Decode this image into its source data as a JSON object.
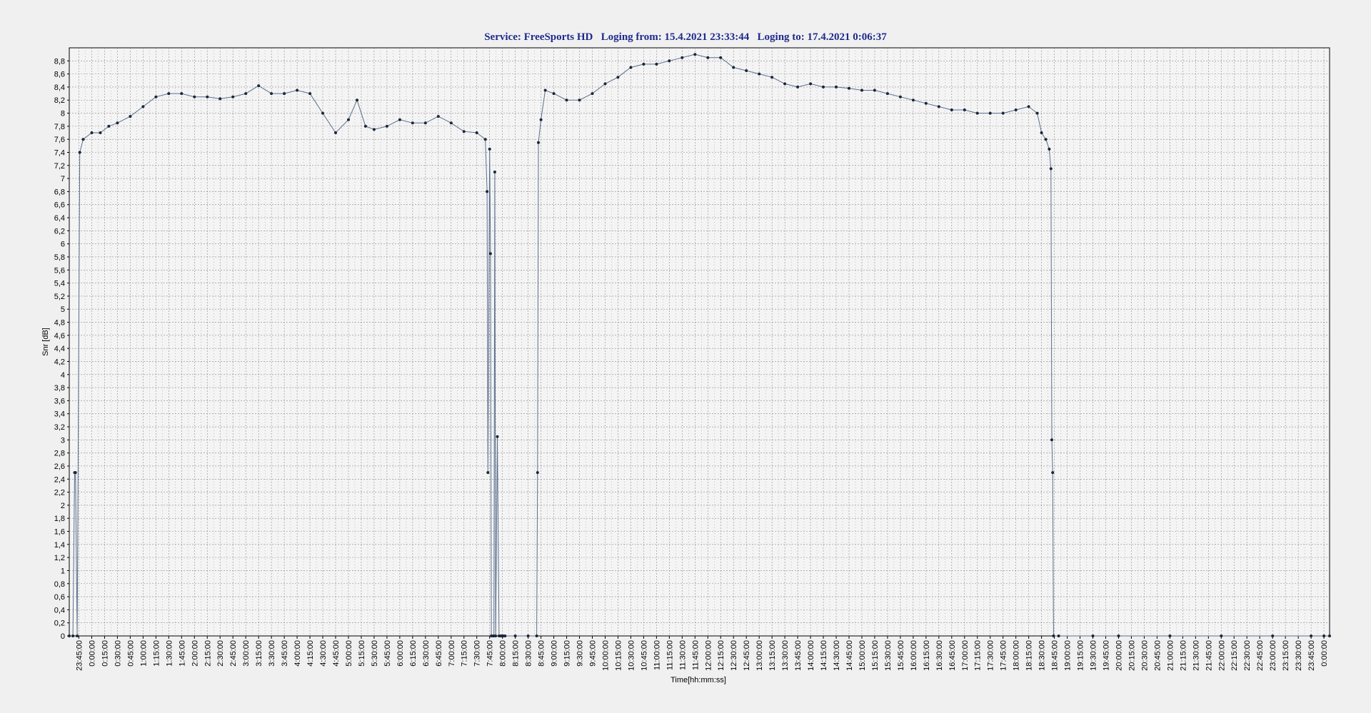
{
  "chart_data": {
    "type": "line",
    "title": "Service: FreeSports HD   Loging from: 15.4.2021 23:33:44   Loging to: 17.4.2021 0:06:37",
    "service": "FreeSports HD",
    "loging_from": "15.4.2021 23:33:44",
    "loging_to": "17.4.2021 0:06:37",
    "xlabel": "Time[hh:mm:ss]",
    "ylabel": "Snr [dB]",
    "ylim": [
      0,
      9.0
    ],
    "yticks": [
      0,
      0.2,
      0.4,
      0.6,
      0.8,
      1,
      1.2,
      1.4,
      1.6,
      1.8,
      2,
      2.2,
      2.4,
      2.6,
      2.8,
      3,
      3.2,
      3.4,
      3.6,
      3.8,
      4,
      4.2,
      4.4,
      4.6,
      4.8,
      5,
      5.2,
      5.4,
      5.6,
      5.8,
      6,
      6.2,
      6.4,
      6.6,
      6.8,
      7,
      7.2,
      7.4,
      7.6,
      7.8,
      8,
      8.2,
      8.4,
      8.6,
      8.8
    ],
    "ytick_labels": [
      "0",
      "0,2",
      "0,4",
      "0,6",
      "0,8",
      "1",
      "1,2",
      "1,4",
      "1,6",
      "1,8",
      "2",
      "2,2",
      "2,4",
      "2,6",
      "2,8",
      "3",
      "3,2",
      "3,4",
      "3,6",
      "3,8",
      "4",
      "4,2",
      "4,4",
      "4,6",
      "4,8",
      "5",
      "5,2",
      "5,4",
      "5,6",
      "5,8",
      "6",
      "6,2",
      "6,4",
      "6,6",
      "6,8",
      "7",
      "7,2",
      "7,4",
      "7,6",
      "7,8",
      "8",
      "8,2",
      "8,4",
      "8,6",
      "8,8"
    ],
    "xrange": [
      "15.4.2021 23:33:44",
      "17.4.2021 0:06:37"
    ],
    "xticks": [
      "23:45:00",
      "0:00:00",
      "0:15:00",
      "0:30:00",
      "0:45:00",
      "1:00:00",
      "1:15:00",
      "1:30:00",
      "1:45:00",
      "2:00:00",
      "2:15:00",
      "2:30:00",
      "2:45:00",
      "3:00:00",
      "3:15:00",
      "3:30:00",
      "3:45:00",
      "4:00:00",
      "4:15:00",
      "4:30:00",
      "4:45:00",
      "5:00:00",
      "5:15:00",
      "5:30:00",
      "5:45:00",
      "6:00:00",
      "6:15:00",
      "6:30:00",
      "6:45:00",
      "7:00:00",
      "7:15:00",
      "7:30:00",
      "7:45:00",
      "8:00:00",
      "8:15:00",
      "8:30:00",
      "8:45:00",
      "9:00:00",
      "9:15:00",
      "9:30:00",
      "9:45:00",
      "10:00:00",
      "10:15:00",
      "10:30:00",
      "10:45:00",
      "11:00:00",
      "11:15:00",
      "11:30:00",
      "11:45:00",
      "12:00:00",
      "12:15:00",
      "12:30:00",
      "12:45:00",
      "13:00:00",
      "13:15:00",
      "13:30:00",
      "13:45:00",
      "14:00:00",
      "14:15:00",
      "14:30:00",
      "14:45:00",
      "15:00:00",
      "15:15:00",
      "15:30:00",
      "15:45:00",
      "16:00:00",
      "16:15:00",
      "16:30:00",
      "16:45:00",
      "17:00:00",
      "17:15:00",
      "17:30:00",
      "17:45:00",
      "18:00:00",
      "18:15:00",
      "18:30:00",
      "18:45:00",
      "19:00:00",
      "19:15:00",
      "19:30:00",
      "19:45:00",
      "20:00:00",
      "20:15:00",
      "20:30:00",
      "20:45:00",
      "21:00:00",
      "21:15:00",
      "21:30:00",
      "21:45:00",
      "22:00:00",
      "22:15:00",
      "22:30:00",
      "22:45:00",
      "23:00:00",
      "23:15:00",
      "23:30:00",
      "23:45:00",
      "0:00:00"
    ],
    "grid": true,
    "legend": "none",
    "colors": {
      "line": "#5a6f8e",
      "marker": "#1a2638",
      "title": "#1f2a8c",
      "plot_bg": "#f4f4f4",
      "grid": "#8a8a8a"
    },
    "series": [
      {
        "x": [
          "23:33:44",
          "23:38:00",
          "23:40:00",
          "23:41:00",
          "23:43:00",
          "23:46:00",
          "23:50:00",
          "0:00:00",
          "0:10:00",
          "0:20:00",
          "0:30:00",
          "0:45:00",
          "1:00:00",
          "1:15:00",
          "1:30:00",
          "1:45:00",
          "2:00:00",
          "2:15:00",
          "2:30:00",
          "2:45:00",
          "3:00:00",
          "3:15:00",
          "3:30:00",
          "3:45:00",
          "4:00:00",
          "4:15:00",
          "4:30:00",
          "4:45:00",
          "5:00:00",
          "5:10:00",
          "5:20:00",
          "5:30:00",
          "5:45:00",
          "6:00:00",
          "6:15:00",
          "6:30:00",
          "6:45:00",
          "7:00:00",
          "7:15:00",
          "7:30:00",
          "7:40:00",
          "7:42:00",
          "7:43:00",
          "7:45:00",
          "7:46:00",
          "7:47:00",
          "7:49:00",
          "7:50:00",
          "7:51:00",
          "7:52:00",
          "7:54:00",
          "7:56:00",
          "7:58:00",
          "7:59:00",
          "8:00:00",
          "8:01:00",
          "8:03:00",
          "8:15:00",
          "8:30:00",
          "8:40:00",
          "8:41:00",
          "8:42:00",
          "8:45:00",
          "8:50:00",
          "9:00:00",
          "9:15:00",
          "9:30:00",
          "9:45:00",
          "10:00:00",
          "10:15:00",
          "10:30:00",
          "10:45:00",
          "11:00:00",
          "11:15:00",
          "11:30:00",
          "11:45:00",
          "12:00:00",
          "12:15:00",
          "12:30:00",
          "12:45:00",
          "13:00:00",
          "13:15:00",
          "13:30:00",
          "13:45:00",
          "14:00:00",
          "14:15:00",
          "14:30:00",
          "14:45:00",
          "15:00:00",
          "15:15:00",
          "15:30:00",
          "15:45:00",
          "16:00:00",
          "16:15:00",
          "16:30:00",
          "16:45:00",
          "17:00:00",
          "17:15:00",
          "17:30:00",
          "17:45:00",
          "18:00:00",
          "18:15:00",
          "18:25:00",
          "18:30:00",
          "18:35:00",
          "18:39:00",
          "18:41:00",
          "18:42:00",
          "18:43:00",
          "18:44:00",
          "18:50:00",
          "19:30:00",
          "20:00:00",
          "21:00:00",
          "22:00:00",
          "23:00:00",
          "23:45:00",
          "0:00:00",
          "0:06:37"
        ],
        "values": [
          0,
          0,
          2.5,
          2.5,
          0,
          7.4,
          7.6,
          7.7,
          7.7,
          7.8,
          7.85,
          7.95,
          8.1,
          8.25,
          8.3,
          8.3,
          8.25,
          8.25,
          8.22,
          8.25,
          8.3,
          8.42,
          8.3,
          8.3,
          8.35,
          8.3,
          8.0,
          7.7,
          7.9,
          8.2,
          7.8,
          7.75,
          7.8,
          7.9,
          7.85,
          7.85,
          7.95,
          7.85,
          7.72,
          7.7,
          7.6,
          6.8,
          2.5,
          7.45,
          5.85,
          0,
          0,
          0,
          7.1,
          0,
          3.05,
          0,
          0,
          0,
          0,
          0,
          0,
          0,
          0,
          0,
          2.5,
          7.55,
          7.9,
          8.35,
          8.3,
          8.2,
          8.2,
          8.3,
          8.45,
          8.55,
          8.7,
          8.75,
          8.75,
          8.8,
          8.85,
          8.9,
          8.85,
          8.85,
          8.7,
          8.65,
          8.6,
          8.55,
          8.45,
          8.4,
          8.45,
          8.4,
          8.4,
          8.38,
          8.35,
          8.35,
          8.3,
          8.25,
          8.2,
          8.15,
          8.1,
          8.05,
          8.05,
          8.0,
          8.0,
          8.0,
          8.05,
          8.1,
          8.0,
          7.7,
          7.6,
          7.45,
          7.15,
          3.0,
          2.5,
          0,
          0,
          0,
          0,
          0,
          0,
          0,
          0,
          0,
          0
        ]
      }
    ]
  }
}
